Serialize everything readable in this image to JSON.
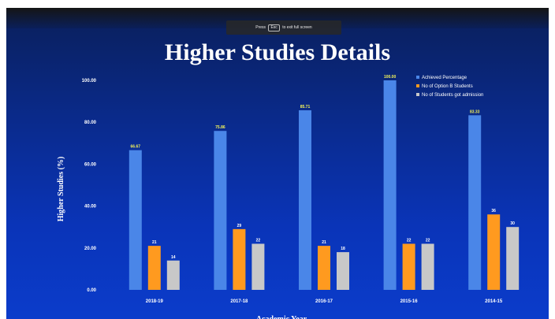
{
  "toast": {
    "before": "Press",
    "key": "Esc",
    "after": "to exit full screen"
  },
  "colors": {
    "achieved": "#4a86e8",
    "options": "#ff9a1f",
    "admission": "#c8c8c8"
  },
  "chart_data": {
    "type": "bar",
    "title": "Higher Studies Details",
    "xlabel": "Academic Year",
    "ylabel": "Higher Studies (%)",
    "ylim": [
      0,
      100
    ],
    "yticks": [
      "0.00",
      "20.00",
      "40.00",
      "60.00",
      "80.00",
      "100.00"
    ],
    "legend_position": "top-right",
    "categories": [
      "2018-19",
      "2017-18",
      "2016-17",
      "2015-16",
      "2014-15"
    ],
    "series": [
      {
        "name": "Achieved Percentage",
        "values": [
          66.67,
          75.86,
          85.71,
          100.0,
          83.33
        ],
        "labels": [
          "66.67",
          "75.86",
          "85.71",
          "100.00",
          "83.33"
        ]
      },
      {
        "name": "No of Option B Students",
        "values": [
          21,
          29,
          21,
          22,
          36
        ],
        "labels": [
          "21",
          "29",
          "21",
          "22",
          "36"
        ]
      },
      {
        "name": "No of Students got admission",
        "values": [
          14,
          22,
          18,
          22,
          30
        ],
        "labels": [
          "14",
          "22",
          "18",
          "22",
          "30"
        ]
      }
    ]
  }
}
